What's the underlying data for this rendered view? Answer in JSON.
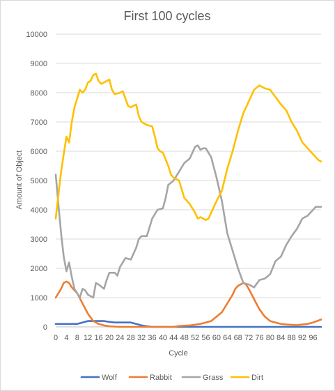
{
  "chart_data": {
    "type": "line",
    "title": "First 100 cycles",
    "xlabel": "Cycle",
    "ylabel": "Amount of Object",
    "xlim": [
      0,
      99
    ],
    "ylim": [
      0,
      10000
    ],
    "grid": true,
    "legend_position": "bottom",
    "y_ticks": [
      "0",
      "1000",
      "2000",
      "3000",
      "4000",
      "5000",
      "6000",
      "7000",
      "8000",
      "9000",
      "10000"
    ],
    "x_ticks": [
      "0",
      "4",
      "8",
      "12",
      "16",
      "20",
      "24",
      "28",
      "32",
      "36",
      "40",
      "44",
      "48",
      "52",
      "56",
      "60",
      "64",
      "68",
      "72",
      "76",
      "80",
      "84",
      "88",
      "92",
      "96"
    ],
    "series": [
      {
        "name": "Wolf",
        "color": "#4472C4",
        "points": [
          [
            0,
            100
          ],
          [
            6,
            100
          ],
          [
            8,
            100
          ],
          [
            10,
            150
          ],
          [
            12,
            200
          ],
          [
            18,
            200
          ],
          [
            20,
            170
          ],
          [
            22,
            150
          ],
          [
            28,
            150
          ],
          [
            30,
            100
          ],
          [
            32,
            50
          ],
          [
            34,
            20
          ],
          [
            36,
            0
          ],
          [
            99,
            0
          ]
        ]
      },
      {
        "name": "Rabbit",
        "color": "#ED7D31",
        "points": [
          [
            0,
            1000
          ],
          [
            2,
            1300
          ],
          [
            3,
            1500
          ],
          [
            4,
            1550
          ],
          [
            5,
            1500
          ],
          [
            6,
            1350
          ],
          [
            8,
            1150
          ],
          [
            10,
            800
          ],
          [
            12,
            450
          ],
          [
            14,
            200
          ],
          [
            16,
            100
          ],
          [
            18,
            50
          ],
          [
            20,
            20
          ],
          [
            24,
            0
          ],
          [
            44,
            0
          ],
          [
            46,
            30
          ],
          [
            50,
            50
          ],
          [
            54,
            100
          ],
          [
            58,
            200
          ],
          [
            62,
            500
          ],
          [
            64,
            800
          ],
          [
            66,
            1100
          ],
          [
            67,
            1300
          ],
          [
            68,
            1400
          ],
          [
            70,
            1500
          ],
          [
            71,
            1450
          ],
          [
            72,
            1300
          ],
          [
            74,
            950
          ],
          [
            76,
            600
          ],
          [
            78,
            350
          ],
          [
            80,
            200
          ],
          [
            82,
            150
          ],
          [
            84,
            100
          ],
          [
            86,
            80
          ],
          [
            90,
            60
          ],
          [
            92,
            80
          ],
          [
            94,
            100
          ],
          [
            96,
            150
          ],
          [
            99,
            250
          ]
        ]
      },
      {
        "name": "Grass",
        "color": "#A5A5A5",
        "points": [
          [
            0,
            5200
          ],
          [
            1,
            4200
          ],
          [
            2,
            3200
          ],
          [
            3,
            2400
          ],
          [
            4,
            1900
          ],
          [
            5,
            2200
          ],
          [
            6,
            1700
          ],
          [
            7,
            1300
          ],
          [
            8,
            1150
          ],
          [
            9,
            1000
          ],
          [
            10,
            1300
          ],
          [
            11,
            1250
          ],
          [
            12,
            1100
          ],
          [
            14,
            1000
          ],
          [
            15,
            1500
          ],
          [
            16,
            1450
          ],
          [
            18,
            1300
          ],
          [
            19,
            1600
          ],
          [
            20,
            1850
          ],
          [
            22,
            1850
          ],
          [
            23,
            1750
          ],
          [
            24,
            2050
          ],
          [
            26,
            2350
          ],
          [
            28,
            2300
          ],
          [
            30,
            2700
          ],
          [
            31,
            3000
          ],
          [
            32,
            3100
          ],
          [
            34,
            3100
          ],
          [
            35,
            3400
          ],
          [
            36,
            3700
          ],
          [
            38,
            4000
          ],
          [
            40,
            4050
          ],
          [
            41,
            4400
          ],
          [
            42,
            4850
          ],
          [
            44,
            5000
          ],
          [
            46,
            5300
          ],
          [
            48,
            5600
          ],
          [
            50,
            5750
          ],
          [
            51,
            5950
          ],
          [
            52,
            6150
          ],
          [
            53,
            6200
          ],
          [
            54,
            6050
          ],
          [
            55,
            6100
          ],
          [
            56,
            6100
          ],
          [
            58,
            5800
          ],
          [
            60,
            5100
          ],
          [
            62,
            4300
          ],
          [
            64,
            3200
          ],
          [
            66,
            2600
          ],
          [
            68,
            2000
          ],
          [
            70,
            1500
          ],
          [
            72,
            1450
          ],
          [
            74,
            1350
          ],
          [
            76,
            1600
          ],
          [
            78,
            1650
          ],
          [
            80,
            1800
          ],
          [
            82,
            2250
          ],
          [
            84,
            2400
          ],
          [
            86,
            2800
          ],
          [
            88,
            3100
          ],
          [
            90,
            3350
          ],
          [
            92,
            3700
          ],
          [
            94,
            3800
          ],
          [
            96,
            4000
          ],
          [
            97,
            4100
          ],
          [
            99,
            4100
          ]
        ]
      },
      {
        "name": "Dirt",
        "color": "#FFC000",
        "points": [
          [
            0,
            3700
          ],
          [
            1,
            4500
          ],
          [
            2,
            5300
          ],
          [
            3,
            5900
          ],
          [
            4,
            6500
          ],
          [
            5,
            6300
          ],
          [
            6,
            7000
          ],
          [
            7,
            7500
          ],
          [
            8,
            7800
          ],
          [
            9,
            8100
          ],
          [
            10,
            8000
          ],
          [
            11,
            8100
          ],
          [
            12,
            8350
          ],
          [
            13,
            8400
          ],
          [
            14,
            8600
          ],
          [
            15,
            8650
          ],
          [
            16,
            8400
          ],
          [
            17,
            8300
          ],
          [
            18,
            8350
          ],
          [
            20,
            8450
          ],
          [
            21,
            8100
          ],
          [
            22,
            7950
          ],
          [
            24,
            8000
          ],
          [
            25,
            8050
          ],
          [
            26,
            7800
          ],
          [
            27,
            7550
          ],
          [
            28,
            7500
          ],
          [
            30,
            7600
          ],
          [
            31,
            7200
          ],
          [
            32,
            7000
          ],
          [
            34,
            6900
          ],
          [
            36,
            6850
          ],
          [
            37,
            6500
          ],
          [
            38,
            6100
          ],
          [
            39,
            6000
          ],
          [
            40,
            5950
          ],
          [
            42,
            5500
          ],
          [
            43,
            5200
          ],
          [
            44,
            5100
          ],
          [
            46,
            5000
          ],
          [
            47,
            4700
          ],
          [
            48,
            4400
          ],
          [
            49,
            4300
          ],
          [
            50,
            4200
          ],
          [
            52,
            3900
          ],
          [
            53,
            3700
          ],
          [
            54,
            3750
          ],
          [
            56,
            3650
          ],
          [
            57,
            3700
          ],
          [
            58,
            3900
          ],
          [
            60,
            4300
          ],
          [
            62,
            4650
          ],
          [
            64,
            5400
          ],
          [
            66,
            6000
          ],
          [
            68,
            6700
          ],
          [
            70,
            7300
          ],
          [
            72,
            7700
          ],
          [
            74,
            8100
          ],
          [
            76,
            8250
          ],
          [
            77,
            8200
          ],
          [
            78,
            8150
          ],
          [
            80,
            8100
          ],
          [
            82,
            7850
          ],
          [
            84,
            7600
          ],
          [
            86,
            7400
          ],
          [
            88,
            7000
          ],
          [
            90,
            6700
          ],
          [
            92,
            6300
          ],
          [
            94,
            6100
          ],
          [
            96,
            5900
          ],
          [
            98,
            5700
          ],
          [
            99,
            5650
          ]
        ]
      }
    ]
  }
}
